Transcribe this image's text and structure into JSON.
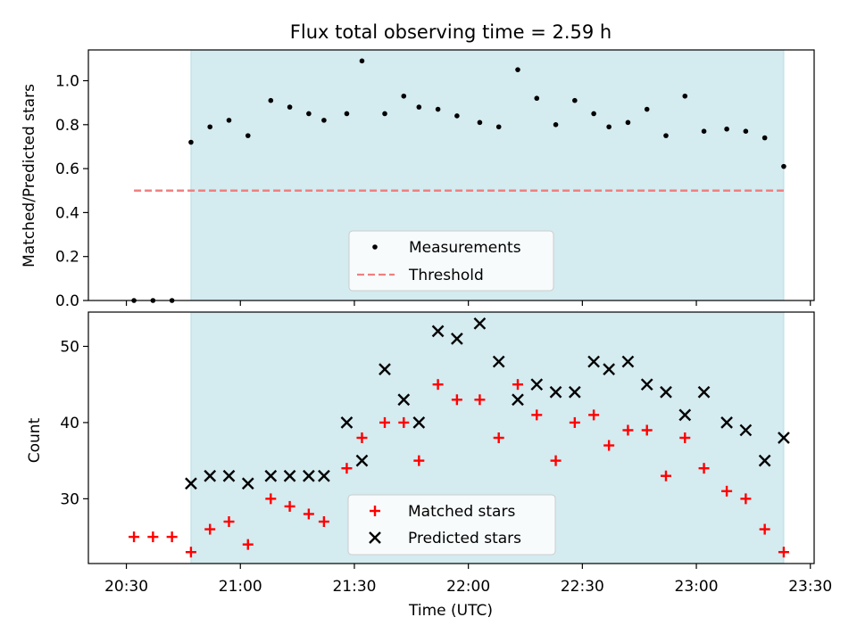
{
  "title": "Flux total observing time = 2.59 h",
  "colors": {
    "shade": "#d4ebf0",
    "shade_edge": "#b7dde5",
    "measurement": "#000000",
    "threshold": "#f08080",
    "matched": "#ff0000",
    "predicted": "#000000"
  },
  "chart_data": [
    {
      "type": "scatter",
      "ylabel": "Matched/Predicted stars",
      "ylim": [
        0,
        1.14
      ],
      "yticks": [
        0.0,
        0.2,
        0.4,
        0.6,
        0.8,
        1.0
      ],
      "ytick_labels": [
        "0.0",
        "0.2",
        "0.4",
        "0.6",
        "0.8",
        "1.0"
      ],
      "xlim": [
        "20:20",
        "23:31"
      ],
      "shaded_range": [
        "20:47",
        "23:23"
      ],
      "legend": {
        "placement": "lower-center",
        "entries": [
          "Measurements",
          "Threshold"
        ]
      },
      "series": [
        {
          "name": "Measurements",
          "marker": "dot",
          "x": [
            "20:32",
            "20:37",
            "20:42",
            "20:47",
            "20:52",
            "20:57",
            "21:02",
            "21:08",
            "21:13",
            "21:18",
            "21:22",
            "21:28",
            "21:32",
            "21:38",
            "21:43",
            "21:47",
            "21:52",
            "21:57",
            "22:03",
            "22:08",
            "22:13",
            "22:18",
            "22:23",
            "22:28",
            "22:33",
            "22:37",
            "22:42",
            "22:47",
            "22:52",
            "22:57",
            "23:02",
            "23:08",
            "23:13",
            "23:18",
            "23:23"
          ],
          "y": [
            0.0,
            0.0,
            0.0,
            0.72,
            0.79,
            0.82,
            0.75,
            0.91,
            0.88,
            0.85,
            0.82,
            0.85,
            1.09,
            0.85,
            0.93,
            0.88,
            0.87,
            0.84,
            0.81,
            0.79,
            1.05,
            0.92,
            0.8,
            0.91,
            0.85,
            0.79,
            0.81,
            0.87,
            0.75,
            0.93,
            0.77,
            0.78,
            0.77,
            0.74,
            0.61
          ]
        },
        {
          "name": "Threshold",
          "marker": "dashed-line",
          "x": [
            "20:32",
            "23:23"
          ],
          "y": [
            0.5,
            0.5
          ]
        }
      ]
    },
    {
      "type": "scatter",
      "ylabel": "Count",
      "xlabel": "Time (UTC)",
      "ylim": [
        21.5,
        54.5
      ],
      "yticks": [
        30,
        40,
        50
      ],
      "ytick_labels": [
        "30",
        "40",
        "50"
      ],
      "xlim": [
        "20:20",
        "23:31"
      ],
      "xticks": [
        "20:30",
        "21:00",
        "21:30",
        "22:00",
        "22:30",
        "23:00",
        "23:30"
      ],
      "xtick_labels": [
        "20:30",
        "21:00",
        "21:30",
        "22:00",
        "22:30",
        "23:00",
        "23:30"
      ],
      "shaded_range": [
        "20:47",
        "23:23"
      ],
      "legend": {
        "placement": "lower-center",
        "entries": [
          "Matched stars",
          "Predicted stars"
        ]
      },
      "series": [
        {
          "name": "Matched stars",
          "marker": "plus",
          "x": [
            "20:32",
            "20:37",
            "20:42",
            "20:47",
            "20:52",
            "20:57",
            "21:02",
            "21:08",
            "21:13",
            "21:18",
            "21:22",
            "21:28",
            "21:32",
            "21:38",
            "21:43",
            "21:47",
            "21:52",
            "21:57",
            "22:03",
            "22:08",
            "22:13",
            "22:18",
            "22:23",
            "22:28",
            "22:33",
            "22:37",
            "22:42",
            "22:47",
            "22:52",
            "22:57",
            "23:02",
            "23:08",
            "23:13",
            "23:18",
            "23:23"
          ],
          "y": [
            25,
            25,
            25,
            23,
            26,
            27,
            24,
            30,
            29,
            28,
            27,
            34,
            38,
            40,
            40,
            35,
            45,
            43,
            43,
            38,
            45,
            41,
            35,
            40,
            41,
            37,
            39,
            39,
            33,
            38,
            34,
            31,
            30,
            26,
            23
          ]
        },
        {
          "name": "Predicted stars",
          "marker": "x",
          "x": [
            "20:47",
            "20:52",
            "20:57",
            "21:02",
            "21:08",
            "21:13",
            "21:18",
            "21:22",
            "21:28",
            "21:32",
            "21:38",
            "21:43",
            "21:47",
            "21:52",
            "21:57",
            "22:03",
            "22:08",
            "22:13",
            "22:18",
            "22:23",
            "22:28",
            "22:33",
            "22:37",
            "22:42",
            "22:47",
            "22:52",
            "22:57",
            "23:02",
            "23:08",
            "23:13",
            "23:18",
            "23:23"
          ],
          "y": [
            32,
            33,
            33,
            32,
            33,
            33,
            33,
            33,
            40,
            35,
            47,
            43,
            40,
            52,
            51,
            53,
            48,
            43,
            45,
            44,
            44,
            48,
            47,
            48,
            45,
            44,
            41,
            44,
            40,
            39,
            35,
            38
          ]
        }
      ]
    }
  ]
}
